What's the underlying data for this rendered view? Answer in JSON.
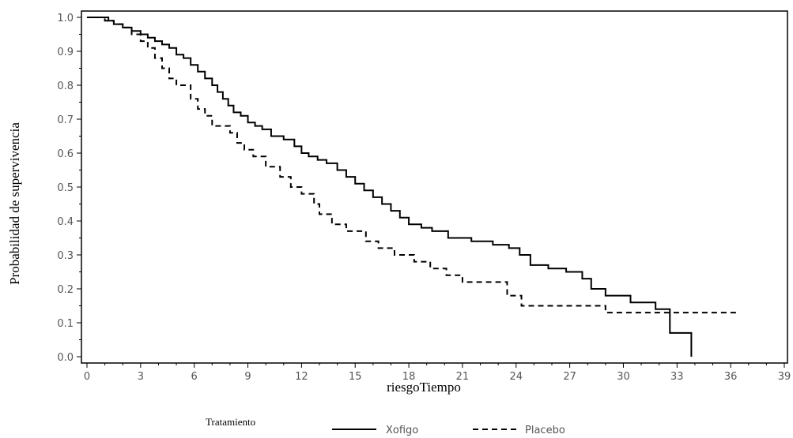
{
  "chart_data": {
    "type": "line",
    "xlabel": "riesgoTiempo",
    "ylabel": "Probabilidad de supervivencia",
    "xlim": [
      0,
      39
    ],
    "ylim": [
      0,
      1
    ],
    "xticks": [
      0,
      3,
      6,
      9,
      12,
      15,
      18,
      21,
      24,
      27,
      30,
      33,
      36,
      39
    ],
    "yticks": [
      0.0,
      0.1,
      0.2,
      0.3,
      0.4,
      0.5,
      0.6,
      0.7,
      0.8,
      0.9,
      1.0
    ],
    "ytick_labels": [
      "0.0",
      "0.1",
      "0.2",
      "0.3",
      "0.4",
      "0.5",
      "0.6",
      "0.7",
      "0.8",
      "0.9",
      "1.0"
    ],
    "step": true,
    "grid": false,
    "legend": {
      "title": "Tratamiento",
      "position": "bottom"
    },
    "series": [
      {
        "name": "Xofigo",
        "style": "solid",
        "color": "#000000",
        "x": [
          0,
          1.2,
          1.5,
          2.0,
          2.5,
          3.0,
          3.4,
          3.8,
          4.2,
          4.6,
          5.0,
          5.4,
          5.8,
          6.2,
          6.6,
          7.0,
          7.3,
          7.6,
          7.9,
          8.2,
          8.6,
          9.0,
          9.4,
          9.8,
          10.3,
          11.0,
          11.6,
          12.0,
          12.4,
          12.9,
          13.4,
          14.0,
          14.5,
          15.0,
          15.5,
          16.0,
          16.5,
          17.0,
          17.5,
          18.0,
          18.7,
          19.3,
          20.2,
          21.5,
          22.7,
          23.6,
          24.2,
          24.8,
          25.8,
          26.8,
          27.7,
          28.2,
          29.0,
          30.4,
          31.8,
          32.6,
          33.8
        ],
        "values": [
          1.0,
          0.99,
          0.98,
          0.97,
          0.96,
          0.95,
          0.94,
          0.93,
          0.92,
          0.91,
          0.89,
          0.88,
          0.86,
          0.84,
          0.82,
          0.8,
          0.78,
          0.76,
          0.74,
          0.72,
          0.71,
          0.69,
          0.68,
          0.67,
          0.65,
          0.64,
          0.62,
          0.6,
          0.59,
          0.58,
          0.57,
          0.55,
          0.53,
          0.51,
          0.49,
          0.47,
          0.45,
          0.43,
          0.41,
          0.39,
          0.38,
          0.37,
          0.35,
          0.34,
          0.33,
          0.32,
          0.3,
          0.27,
          0.26,
          0.25,
          0.23,
          0.2,
          0.18,
          0.16,
          0.14,
          0.07,
          0.0
        ]
      },
      {
        "name": "Placebo",
        "style": "dashed",
        "color": "#000000",
        "x": [
          0,
          1.0,
          1.5,
          2.0,
          2.5,
          3.0,
          3.4,
          3.8,
          4.2,
          4.6,
          5.0,
          5.8,
          6.2,
          6.6,
          7.0,
          8.0,
          8.4,
          8.8,
          9.3,
          10.0,
          10.8,
          11.4,
          12.0,
          12.7,
          13.0,
          13.7,
          14.5,
          15.6,
          16.3,
          17.2,
          18.3,
          19.2,
          20.1,
          21.0,
          23.5,
          24.3,
          29.0
        ],
        "values": [
          1.0,
          0.99,
          0.98,
          0.97,
          0.95,
          0.93,
          0.91,
          0.88,
          0.85,
          0.82,
          0.8,
          0.76,
          0.73,
          0.71,
          0.68,
          0.66,
          0.63,
          0.61,
          0.59,
          0.56,
          0.53,
          0.5,
          0.48,
          0.45,
          0.42,
          0.39,
          0.37,
          0.34,
          0.32,
          0.3,
          0.28,
          0.26,
          0.24,
          0.22,
          0.18,
          0.15,
          0.13
        ],
        "end_x": 36.5
      }
    ]
  }
}
